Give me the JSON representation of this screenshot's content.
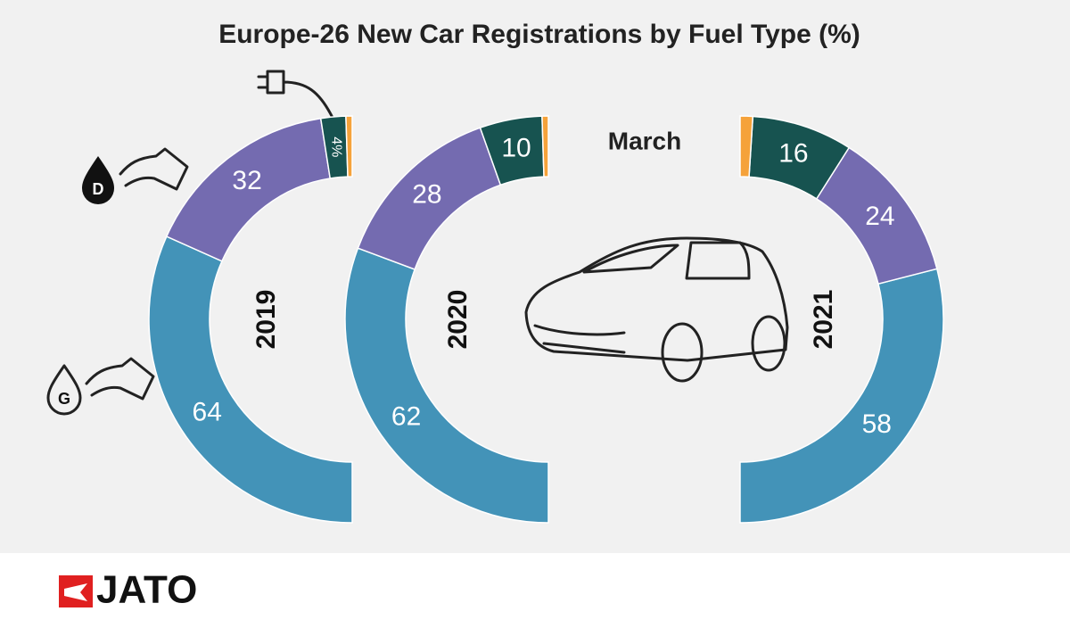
{
  "chart_data": {
    "type": "half-donut",
    "title": "Europe-26 New Car Registrations by Fuel Type (%)",
    "subtitle": "March",
    "categories": [
      "2019",
      "2020",
      "2021"
    ],
    "series": [
      {
        "color": "#4393b8",
        "values": [
          64,
          62,
          58
        ]
      },
      {
        "color": "#746bb0",
        "values": [
          32,
          28,
          24
        ]
      },
      {
        "color": "#175350",
        "values": [
          4,
          10,
          16
        ],
        "value_labels": [
          "4%",
          "10",
          "16"
        ]
      },
      {
        "color": "#f5a23a",
        "values": [
          1,
          1,
          2
        ]
      }
    ]
  },
  "footer": {
    "logo": "JATO"
  }
}
